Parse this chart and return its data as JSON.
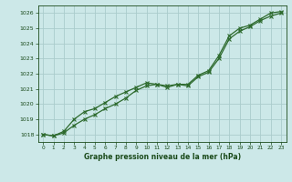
{
  "x": [
    0,
    1,
    2,
    3,
    4,
    5,
    6,
    7,
    8,
    9,
    10,
    11,
    12,
    13,
    14,
    15,
    16,
    17,
    18,
    19,
    20,
    21,
    22,
    23
  ],
  "line1": [
    1018.0,
    1017.9,
    1018.1,
    1018.6,
    1019.0,
    1019.3,
    1019.7,
    1020.0,
    1020.4,
    1020.9,
    1021.2,
    1021.3,
    1021.1,
    1021.3,
    1021.2,
    1021.8,
    1022.1,
    1023.0,
    1024.3,
    1024.8,
    1025.1,
    1025.5,
    1025.8,
    1026.0
  ],
  "line2": [
    1018.0,
    1017.9,
    1018.2,
    1019.0,
    1019.5,
    1019.7,
    1020.1,
    1020.5,
    1020.8,
    1021.1,
    1021.4,
    1021.3,
    1021.2,
    1021.3,
    1021.3,
    1021.9,
    1022.2,
    1023.2,
    1024.5,
    1025.0,
    1025.2,
    1025.6,
    1026.0,
    1026.1
  ],
  "xlabel": "Graphe pression niveau de la mer (hPa)",
  "ylim": [
    1017.5,
    1026.5
  ],
  "xlim": [
    -0.5,
    23.5
  ],
  "yticks": [
    1018,
    1019,
    1020,
    1021,
    1022,
    1023,
    1024,
    1025,
    1026
  ],
  "xticks": [
    0,
    1,
    2,
    3,
    4,
    5,
    6,
    7,
    8,
    9,
    10,
    11,
    12,
    13,
    14,
    15,
    16,
    17,
    18,
    19,
    20,
    21,
    22,
    23
  ],
  "line_color": "#2d6a2d",
  "bg_color": "#cce8e8",
  "grid_color": "#aacccc",
  "text_color": "#1a4a1a",
  "marker": "x",
  "linewidth": 0.9,
  "markersize": 2.8,
  "markeredgewidth": 0.8
}
